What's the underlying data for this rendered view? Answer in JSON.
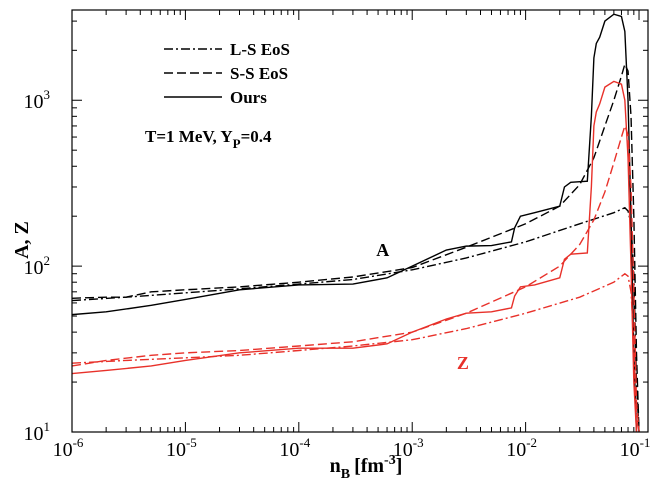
{
  "chart_data": {
    "type": "line",
    "xlabel_main": "n",
    "xlabel_sub": "B",
    "xlabel_unit": "[fm",
    "xlabel_unit_exp": "-3",
    "xlabel_close": "]",
    "ylabel": "A, Z",
    "xscale": "log",
    "yscale": "log",
    "xlim": [
      1e-06,
      0.12
    ],
    "ylim": [
      10,
      3500
    ],
    "grid": false,
    "legend_position": "top-left",
    "x_ticks": [
      {
        "base": "10",
        "exp": "-6",
        "value": 1e-06
      },
      {
        "base": "10",
        "exp": "-5",
        "value": 1e-05
      },
      {
        "base": "10",
        "exp": "-4",
        "value": 0.0001
      },
      {
        "base": "10",
        "exp": "-3",
        "value": 0.001
      },
      {
        "base": "10",
        "exp": "-2",
        "value": 0.01
      },
      {
        "base": "10",
        "exp": "-1",
        "value": 0.1
      }
    ],
    "y_ticks": [
      {
        "base": "10",
        "exp": "1",
        "value": 10
      },
      {
        "base": "10",
        "exp": "2",
        "value": 100
      },
      {
        "base": "10",
        "exp": "3",
        "value": 1000
      }
    ],
    "legend": [
      {
        "label": "L-S EoS",
        "dash": "dashdot"
      },
      {
        "label": "S-S EoS",
        "dash": "dashed"
      },
      {
        "label": "Ours",
        "dash": "solid"
      }
    ],
    "condition": {
      "prefix": "T=1 MeV, Y",
      "sub": "P",
      "suffix": "=0.4"
    },
    "annotations": [
      {
        "text": "A",
        "x": 0.00055,
        "y": 115,
        "color": "#000000"
      },
      {
        "text": "Z",
        "x": 0.0028,
        "y": 24,
        "color": "#e8312a"
      }
    ],
    "colors": {
      "A": "#000000",
      "Z": "#e8312a"
    },
    "series": [
      {
        "quantity": "A",
        "model": "L-S EoS",
        "dash": "dashdot",
        "color": "#000000",
        "points": [
          [
            1e-06,
            62
          ],
          [
            3e-06,
            65
          ],
          [
            1e-05,
            69
          ],
          [
            3e-05,
            73
          ],
          [
            0.0001,
            78
          ],
          [
            0.0003,
            83
          ],
          [
            0.001,
            95
          ],
          [
            0.003,
            112
          ],
          [
            0.01,
            140
          ],
          [
            0.03,
            180
          ],
          [
            0.06,
            210
          ],
          [
            0.075,
            225
          ],
          [
            0.08,
            215
          ],
          [
            0.085,
            180
          ],
          [
            0.09,
            90
          ],
          [
            0.095,
            20
          ],
          [
            0.1,
            10
          ]
        ]
      },
      {
        "quantity": "A",
        "model": "S-S EoS",
        "dash": "dashed",
        "color": "#000000",
        "points": [
          [
            1e-06,
            64
          ],
          [
            2e-06,
            65
          ],
          [
            3e-06,
            65
          ],
          [
            5e-06,
            70
          ],
          [
            1e-05,
            72
          ],
          [
            3e-05,
            75
          ],
          [
            0.0001,
            80
          ],
          [
            0.0003,
            86
          ],
          [
            0.001,
            98
          ],
          [
            0.003,
            130
          ],
          [
            0.01,
            180
          ],
          [
            0.02,
            230
          ],
          [
            0.03,
            310
          ],
          [
            0.04,
            450
          ],
          [
            0.05,
            700
          ],
          [
            0.06,
            1000
          ],
          [
            0.07,
            1400
          ],
          [
            0.075,
            1650
          ],
          [
            0.08,
            1500
          ],
          [
            0.085,
            800
          ],
          [
            0.09,
            200
          ],
          [
            0.095,
            30
          ],
          [
            0.1,
            10
          ]
        ]
      },
      {
        "quantity": "A",
        "model": "Ours",
        "dash": "solid",
        "color": "#000000",
        "points": [
          [
            1e-06,
            51
          ],
          [
            2e-06,
            53
          ],
          [
            5e-06,
            58
          ],
          [
            1e-05,
            63
          ],
          [
            3e-05,
            72
          ],
          [
            0.0001,
            77
          ],
          [
            0.0003,
            78
          ],
          [
            0.0006,
            85
          ],
          [
            0.001,
            100
          ],
          [
            0.002,
            125
          ],
          [
            0.003,
            132
          ],
          [
            0.005,
            133
          ],
          [
            0.0075,
            140
          ],
          [
            0.008,
            170
          ],
          [
            0.009,
            200
          ],
          [
            0.012,
            210
          ],
          [
            0.02,
            230
          ],
          [
            0.022,
            300
          ],
          [
            0.025,
            320
          ],
          [
            0.035,
            325
          ],
          [
            0.038,
            800
          ],
          [
            0.04,
            1800
          ],
          [
            0.042,
            2200
          ],
          [
            0.045,
            2400
          ],
          [
            0.05,
            3000
          ],
          [
            0.06,
            3300
          ],
          [
            0.07,
            3200
          ],
          [
            0.075,
            2600
          ],
          [
            0.08,
            1000
          ],
          [
            0.085,
            200
          ],
          [
            0.09,
            30
          ],
          [
            0.095,
            10
          ]
        ]
      },
      {
        "quantity": "Z",
        "model": "L-S EoS",
        "dash": "dashdot",
        "color": "#e8312a",
        "points": [
          [
            1e-06,
            26
          ],
          [
            3e-06,
            27
          ],
          [
            1e-05,
            28
          ],
          [
            3e-05,
            29
          ],
          [
            0.0001,
            31
          ],
          [
            0.0003,
            33
          ],
          [
            0.001,
            36
          ],
          [
            0.003,
            42
          ],
          [
            0.01,
            52
          ],
          [
            0.03,
            65
          ],
          [
            0.06,
            80
          ],
          [
            0.075,
            90
          ],
          [
            0.08,
            87
          ],
          [
            0.085,
            70
          ],
          [
            0.09,
            35
          ],
          [
            0.095,
            12
          ],
          [
            0.1,
            10
          ]
        ]
      },
      {
        "quantity": "Z",
        "model": "S-S EoS",
        "dash": "dashed",
        "color": "#e8312a",
        "points": [
          [
            1e-06,
            25
          ],
          [
            2e-06,
            27
          ],
          [
            5e-06,
            29
          ],
          [
            1e-05,
            30
          ],
          [
            3e-05,
            31
          ],
          [
            0.0001,
            33
          ],
          [
            0.0003,
            35
          ],
          [
            0.001,
            40
          ],
          [
            0.003,
            52
          ],
          [
            0.01,
            75
          ],
          [
            0.02,
            100
          ],
          [
            0.03,
            135
          ],
          [
            0.04,
            190
          ],
          [
            0.05,
            280
          ],
          [
            0.06,
            420
          ],
          [
            0.07,
            600
          ],
          [
            0.075,
            700
          ],
          [
            0.08,
            620
          ],
          [
            0.085,
            300
          ],
          [
            0.09,
            70
          ],
          [
            0.095,
            15
          ],
          [
            0.1,
            10
          ]
        ]
      },
      {
        "quantity": "Z",
        "model": "Ours",
        "dash": "solid",
        "color": "#e8312a",
        "points": [
          [
            1e-06,
            22.5
          ],
          [
            2e-06,
            23.5
          ],
          [
            5e-06,
            25
          ],
          [
            1e-05,
            27
          ],
          [
            3e-05,
            30
          ],
          [
            0.0001,
            32
          ],
          [
            0.0003,
            32
          ],
          [
            0.0006,
            34
          ],
          [
            0.001,
            40
          ],
          [
            0.002,
            48
          ],
          [
            0.003,
            52
          ],
          [
            0.005,
            53
          ],
          [
            0.0075,
            56
          ],
          [
            0.008,
            66
          ],
          [
            0.009,
            75
          ],
          [
            0.012,
            77
          ],
          [
            0.02,
            85
          ],
          [
            0.022,
            110
          ],
          [
            0.025,
            118
          ],
          [
            0.035,
            120
          ],
          [
            0.038,
            300
          ],
          [
            0.04,
            700
          ],
          [
            0.042,
            850
          ],
          [
            0.045,
            950
          ],
          [
            0.05,
            1200
          ],
          [
            0.06,
            1300
          ],
          [
            0.07,
            1250
          ],
          [
            0.075,
            1000
          ],
          [
            0.08,
            450
          ],
          [
            0.085,
            100
          ],
          [
            0.09,
            20
          ],
          [
            0.095,
            10
          ]
        ]
      }
    ]
  }
}
